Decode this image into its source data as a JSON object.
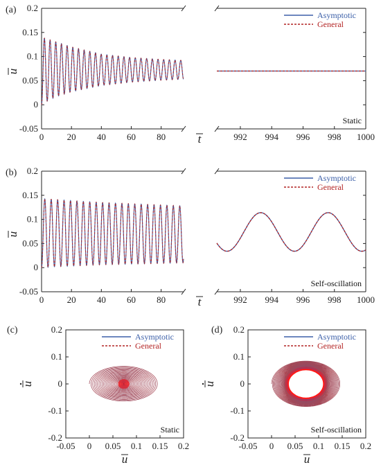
{
  "colors": {
    "asymptotic": "#3b5fa8",
    "general": "#b22222",
    "axis": "#222222",
    "fill_inner": "#ff1a1a"
  },
  "chart_data": [
    {
      "id": "a-left",
      "type": "line",
      "panel_label": "(a)",
      "ylabel": "u",
      "xlim": [
        0,
        95
      ],
      "ylim": [
        -0.05,
        0.2
      ],
      "xticks": [
        "0",
        "20",
        "40",
        "60",
        "80"
      ],
      "yticks": [
        "-0.05",
        "0",
        "0.05",
        "0.1",
        "0.15",
        "0.2"
      ],
      "series": [
        {
          "name": "Asymptotic",
          "style": "solid",
          "description": "decaying oscillation, period ~3.8",
          "x": [
            0,
            5,
            10,
            20,
            40,
            60,
            80,
            95
          ],
          "envelope_max": [
            0.14,
            0.135,
            0.13,
            0.12,
            0.105,
            0.098,
            0.094,
            0.092
          ],
          "envelope_min": [
            0.0,
            0.01,
            0.017,
            0.027,
            0.04,
            0.047,
            0.051,
            0.053
          ]
        },
        {
          "name": "General",
          "style": "dashed",
          "description": "overlaps Asymptotic",
          "x": [
            0,
            5,
            10,
            20,
            40,
            60,
            80,
            95
          ],
          "envelope_max": [
            0.14,
            0.135,
            0.13,
            0.12,
            0.105,
            0.098,
            0.094,
            0.092
          ],
          "envelope_min": [
            0.0,
            0.01,
            0.017,
            0.027,
            0.04,
            0.047,
            0.051,
            0.053
          ]
        }
      ]
    },
    {
      "id": "a-right",
      "type": "line",
      "xlabel": "t",
      "xlim": [
        990.5,
        1000
      ],
      "ylim": [
        -0.05,
        0.2
      ],
      "xticks": [
        "992",
        "994",
        "996",
        "998",
        "1000"
      ],
      "annotation": "Static",
      "legend": {
        "position": "top-right",
        "entries": [
          "Asymptotic",
          "General"
        ]
      },
      "series": [
        {
          "name": "Asymptotic",
          "style": "solid",
          "x": [
            990.5,
            1000
          ],
          "y": [
            0.07,
            0.07
          ]
        },
        {
          "name": "General",
          "style": "dashed",
          "x": [
            990.5,
            1000
          ],
          "y": [
            0.07,
            0.07
          ]
        }
      ]
    },
    {
      "id": "b-left",
      "type": "line",
      "panel_label": "(b)",
      "ylabel": "u",
      "xlim": [
        0,
        95
      ],
      "ylim": [
        -0.05,
        0.2
      ],
      "xticks": [
        "0",
        "20",
        "40",
        "60",
        "80"
      ],
      "yticks": [
        "-0.05",
        "0",
        "0.05",
        "0.1",
        "0.15",
        "0.2"
      ],
      "series": [
        {
          "name": "Asymptotic",
          "style": "solid",
          "description": "sustained oscillation, period ~4.3",
          "x": [
            0,
            10,
            40,
            95
          ],
          "envelope_max": [
            0.143,
            0.141,
            0.135,
            0.128
          ],
          "envelope_min": [
            0.0,
            0.002,
            0.006,
            0.01
          ]
        },
        {
          "name": "General",
          "style": "dashed",
          "x": [
            0,
            10,
            40,
            95
          ],
          "envelope_max": [
            0.143,
            0.141,
            0.135,
            0.128
          ],
          "envelope_min": [
            0.0,
            0.002,
            0.006,
            0.01
          ]
        }
      ]
    },
    {
      "id": "b-right",
      "type": "line",
      "xlabel": "t",
      "xlim": [
        990.5,
        1000
      ],
      "ylim": [
        -0.05,
        0.2
      ],
      "xticks": [
        "992",
        "994",
        "996",
        "998",
        "1000"
      ],
      "annotation": "Self-oscillation",
      "legend": {
        "position": "top-right",
        "entries": [
          "Asymptotic",
          "General"
        ]
      },
      "series": [
        {
          "name": "Asymptotic",
          "style": "solid",
          "description": "sinusoid, mean 0.074, amplitude 0.04, period 4.3, peak at 993.3"
        },
        {
          "name": "General",
          "style": "dashed",
          "description": "overlaps Asymptotic"
        }
      ]
    },
    {
      "id": "c",
      "type": "line",
      "panel_label": "(c)",
      "xlabel": "u",
      "ylabel": "u",
      "xlim": [
        -0.05,
        0.2
      ],
      "ylim": [
        -0.2,
        0.2
      ],
      "xticks": [
        "-0.05",
        "0",
        "0.05",
        "0.1",
        "0.15",
        "0.2"
      ],
      "yticks": [
        "-0.2",
        "-0.1",
        "0",
        "0.1",
        "0.2"
      ],
      "annotation": "Static",
      "legend": {
        "position": "top-right",
        "entries": [
          "Asymptotic",
          "General"
        ]
      },
      "series": [
        {
          "name": "Asymptotic",
          "style": "solid",
          "description": "phase spiral from (0, 0) into fixed point (0.073, 0)",
          "center": [
            0.073,
            0
          ],
          "start_radius_x": 0.073,
          "start_radius_y": 0.066
        },
        {
          "name": "General",
          "style": "dashed",
          "description": "overlaps Asymptotic"
        }
      ]
    },
    {
      "id": "d",
      "type": "line",
      "panel_label": "(d)",
      "xlabel": "u",
      "ylabel": "u",
      "xlim": [
        -0.05,
        0.2
      ],
      "ylim": [
        -0.2,
        0.2
      ],
      "xticks": [
        "-0.05",
        "0",
        "0.05",
        "0.1",
        "0.15",
        "0.2"
      ],
      "yticks": [
        "-0.2",
        "-0.1",
        "0",
        "0.1",
        "0.2"
      ],
      "annotation": "Self-oscillation",
      "legend": {
        "position": "top-right",
        "entries": [
          "Asymptotic",
          "General"
        ]
      },
      "series": [
        {
          "name": "Asymptotic",
          "style": "solid",
          "description": "trajectory spiralling onto limit cycle",
          "center": [
            0.073,
            0
          ],
          "cycle_radius_x": 0.04,
          "cycle_radius_y": 0.057,
          "outer_radius_x": 0.073,
          "outer_radius_y": 0.085
        },
        {
          "name": "General",
          "style": "dashed",
          "description": "overlaps Asymptotic"
        }
      ]
    }
  ]
}
